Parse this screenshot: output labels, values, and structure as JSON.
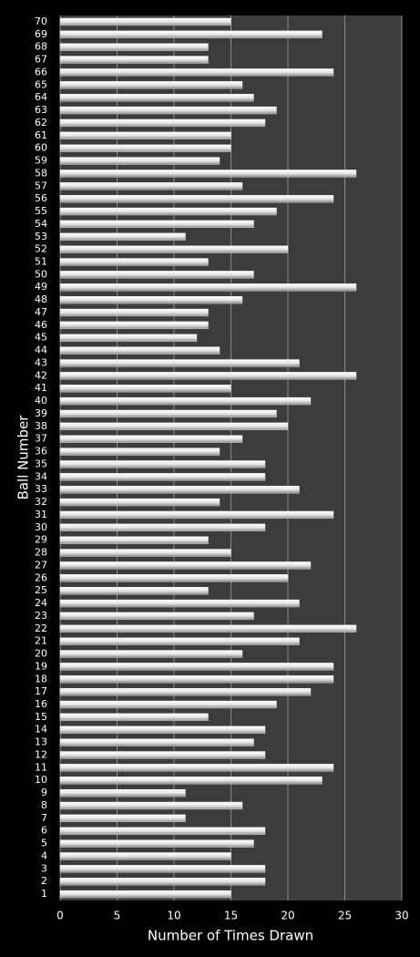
{
  "chart_data": {
    "type": "bar",
    "orientation": "horizontal",
    "x_label": "Number of Times Drawn",
    "y_label": "Ball Number",
    "categories": [
      "1",
      "2",
      "3",
      "4",
      "5",
      "6",
      "7",
      "8",
      "9",
      "10",
      "11",
      "12",
      "13",
      "14",
      "15",
      "16",
      "17",
      "18",
      "19",
      "20",
      "21",
      "22",
      "23",
      "24",
      "25",
      "26",
      "27",
      "28",
      "29",
      "30",
      "31",
      "32",
      "33",
      "34",
      "35",
      "36",
      "37",
      "38",
      "39",
      "40",
      "41",
      "42",
      "43",
      "44",
      "45",
      "46",
      "47",
      "48",
      "49",
      "50",
      "51",
      "52",
      "53",
      "54",
      "55",
      "56",
      "57",
      "58",
      "59",
      "60",
      "61",
      "62",
      "63",
      "64",
      "65",
      "66",
      "67",
      "68",
      "69",
      "70"
    ],
    "values": [
      15,
      18,
      18,
      15,
      17,
      18,
      11,
      16,
      11,
      23,
      24,
      18,
      17,
      18,
      13,
      19,
      22,
      24,
      24,
      16,
      21,
      26,
      17,
      21,
      13,
      20,
      22,
      15,
      13,
      18,
      24,
      14,
      21,
      18,
      18,
      14,
      16,
      20,
      19,
      22,
      15,
      26,
      21,
      14,
      12,
      13,
      13,
      16,
      26,
      17,
      13,
      20,
      11,
      17,
      19,
      24,
      16,
      26,
      14,
      15,
      15,
      18,
      19,
      17,
      16,
      24,
      13,
      13,
      23,
      15
    ],
    "color": "#ffffff",
    "xlim": [
      0,
      30
    ],
    "xticks": [
      0,
      5,
      10,
      15,
      20,
      25,
      30
    ],
    "grid": true
  }
}
